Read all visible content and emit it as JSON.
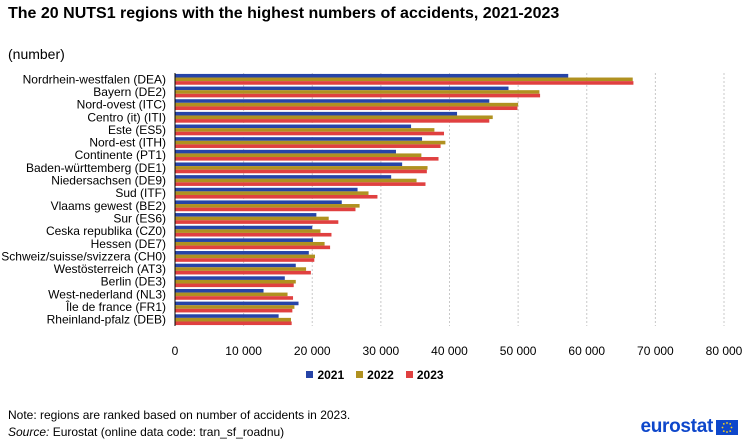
{
  "title": "The 20 NUTS1 regions with the highest numbers of accidents, 2021-2023",
  "subtitle": "(number)",
  "note": "Note: regions are ranked based on number of accidents in 2023.",
  "source_prefix": "Source:",
  "source_text": " Eurostat (online data code: tran_sf_roadnu)",
  "logo_text": "eurostat",
  "chart_data": {
    "type": "bar",
    "orientation": "horizontal",
    "categories": [
      "Nordrhein-westfalen (DEA)",
      "Bayern (DE2)",
      "Nord-ovest (ITC)",
      "Centro (it) (ITI)",
      "Este (ES5)",
      "Nord-est (ITH)",
      "Continente (PT1)",
      "Baden-württemberg (DE1)",
      "Niedersachsen (DE9)",
      "Sud (ITF)",
      "Vlaams gewest (BE2)",
      "Sur (ES6)",
      "Ceska republika (CZ0)",
      "Hessen (DE7)",
      "Schweiz/suisse/svizzera (CH0)",
      "Westösterreich (AT3)",
      "Berlin (DE3)",
      "West-nederland (NL3)",
      "Île de france (FR1)",
      "Rheinland-pfalz (DEB)"
    ],
    "series": [
      {
        "name": "2021",
        "color": "#2644a7",
        "values": [
          57300,
          48600,
          45800,
          41100,
          34400,
          36000,
          32200,
          33100,
          31500,
          26600,
          24300,
          20600,
          20000,
          20100,
          19500,
          17600,
          16000,
          12900,
          18000,
          15100
        ]
      },
      {
        "name": "2022",
        "color": "#b09120",
        "values": [
          66700,
          53100,
          50000,
          46300,
          37800,
          39400,
          35900,
          36800,
          35200,
          28200,
          26900,
          22400,
          21200,
          21800,
          20400,
          19100,
          17600,
          16400,
          17400,
          16900
        ]
      },
      {
        "name": "2023",
        "color": "#e04040",
        "values": [
          66800,
          53200,
          49900,
          45800,
          39200,
          38700,
          38400,
          36700,
          36500,
          29500,
          26300,
          23800,
          22800,
          22600,
          20300,
          19800,
          17300,
          17200,
          17100,
          17000
        ]
      }
    ],
    "xlim": [
      0,
      80000
    ],
    "xticks": [
      0,
      10000,
      20000,
      30000,
      40000,
      50000,
      60000,
      70000,
      80000
    ],
    "xtick_labels": [
      "0",
      "10 000",
      "20 000",
      "30 000",
      "40 000",
      "50 000",
      "60 000",
      "70 000",
      "80 000"
    ],
    "grid": "vertical-dashed",
    "legend": "bottom-center"
  }
}
